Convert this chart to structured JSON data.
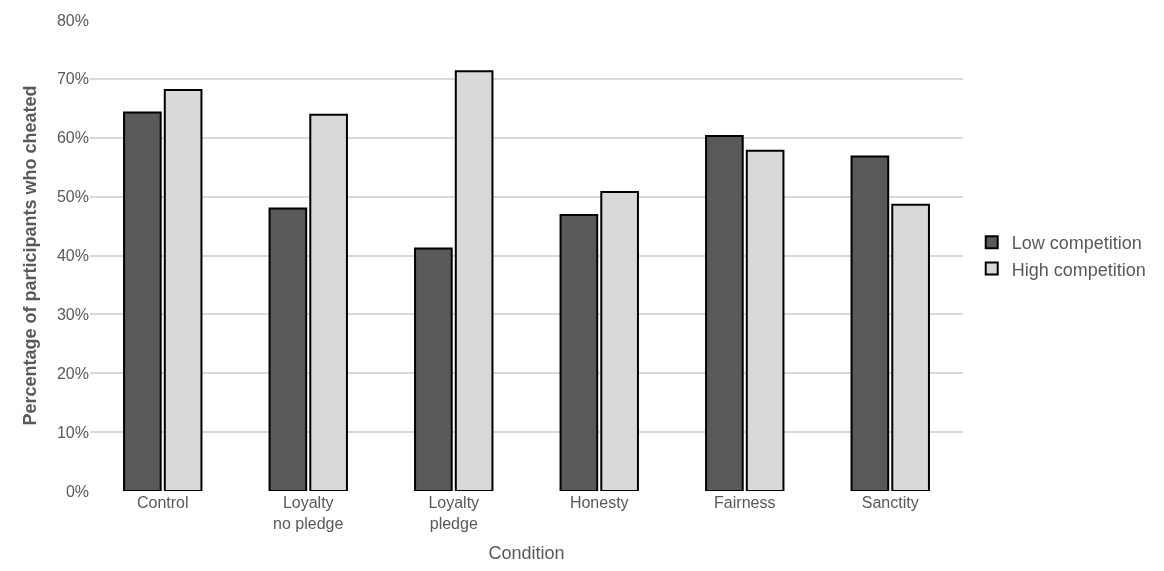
{
  "chart_data": {
    "type": "bar",
    "xlabel": "Condition",
    "ylabel": "Percentage of participants who cheated",
    "categories": [
      "Control",
      "Loyalty\nno pledge",
      "Loyalty\npledge",
      "Honesty",
      "Fairness",
      "Sanctity"
    ],
    "series": [
      {
        "name": "Low competition",
        "color": "#595959",
        "values": [
          64.3,
          48.0,
          41.2,
          46.9,
          60.3,
          56.8
        ]
      },
      {
        "name": "High competition",
        "color": "#d9d9d9",
        "values": [
          68.1,
          63.9,
          71.3,
          50.8,
          57.8,
          48.6
        ]
      }
    ],
    "ylim": [
      0,
      80
    ],
    "yticks": [
      {
        "value": 0,
        "label": "0%"
      },
      {
        "value": 10,
        "label": "10%"
      },
      {
        "value": 20,
        "label": "20%"
      },
      {
        "value": 30,
        "label": "30%"
      },
      {
        "value": 40,
        "label": "40%"
      },
      {
        "value": 50,
        "label": "50%"
      },
      {
        "value": 60,
        "label": "60%"
      },
      {
        "value": 70,
        "label": "70%"
      },
      {
        "value": 80,
        "label": "80%"
      }
    ],
    "grid": "y",
    "legend": "right"
  }
}
